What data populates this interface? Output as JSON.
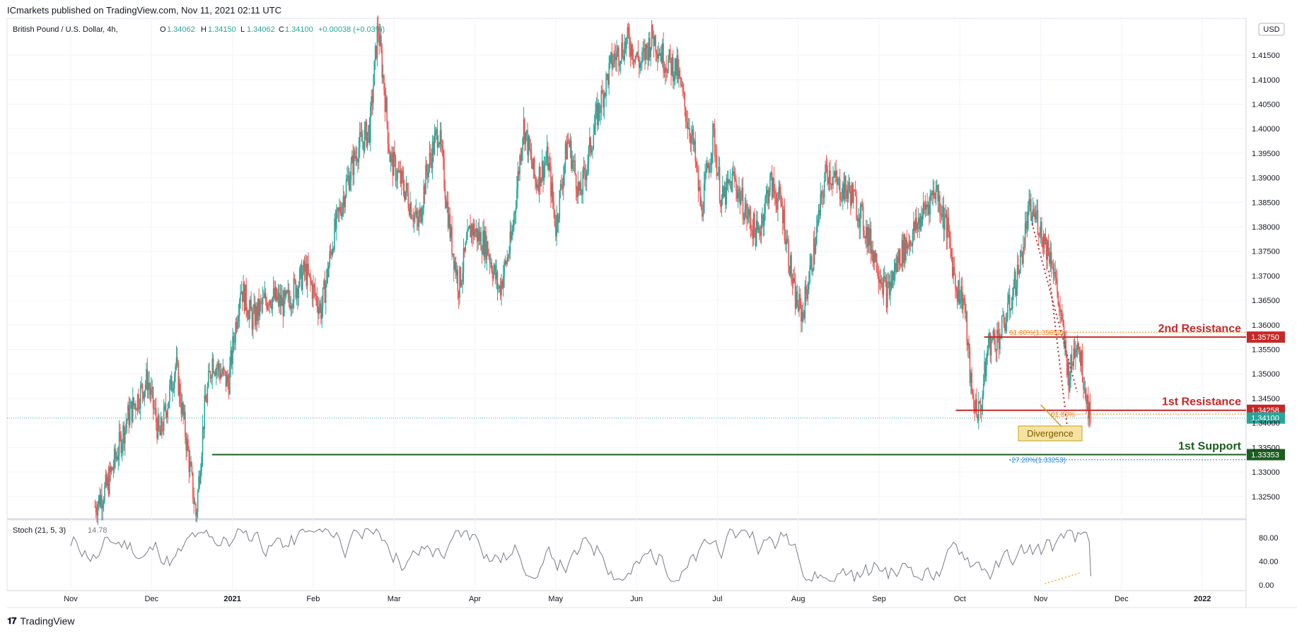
{
  "header": {
    "publisher": "ICmarkets published on TradingView.com, Nov 11, 2021 02:11 UTC"
  },
  "legend": {
    "symbol": "British Pound / U.S. Dollar, 4h,",
    "open_label": "O",
    "open": "1.34062",
    "high_label": "H",
    "high": "1.34150",
    "low_label": "L",
    "low": "1.34062",
    "close_label": "C",
    "close": "1.34100",
    "change": "+0.00038 (+0.03%)"
  },
  "currency_badge": "USD",
  "footer": {
    "logo_text": "𝟏𝟕",
    "brand": "TradingView"
  },
  "colors": {
    "up": "#26a69a",
    "down": "#ef5350",
    "resistance": "#c62828",
    "support": "#1b5e20",
    "fib": "#f57f17",
    "stoch": "#787b86"
  },
  "chart_data": [
    {
      "type": "candlestick",
      "title": "British Pound / U.S. Dollar, 4h",
      "y_scale": "price",
      "ylim": [
        1.3205,
        1.4225
      ],
      "y_ticks": [
        "1.32500",
        "1.33000",
        "1.33500",
        "1.34000",
        "1.34500",
        "1.35000",
        "1.35500",
        "1.36000",
        "1.36500",
        "1.37000",
        "1.37500",
        "1.38000",
        "1.38500",
        "1.39000",
        "1.39500",
        "1.40000",
        "1.40500",
        "1.41000",
        "1.41500"
      ],
      "x_ticks": [
        "Nov",
        "Dec",
        "2021",
        "Feb",
        "Mar",
        "Apr",
        "May",
        "Jun",
        "Jul",
        "Aug",
        "Sep",
        "Oct",
        "Nov",
        "Dec",
        "2022"
      ],
      "x_tick_positions": [
        0,
        1,
        2,
        3,
        4,
        5,
        6,
        7,
        8,
        9,
        10,
        11,
        12,
        13,
        14
      ],
      "last_price": 1.341,
      "price_path": [
        [
          0.3,
          1.323
        ],
        [
          0.45,
          1.327
        ],
        [
          0.7,
          1.341
        ],
        [
          0.95,
          1.349
        ],
        [
          1.1,
          1.337
        ],
        [
          1.3,
          1.352
        ],
        [
          1.45,
          1.334
        ],
        [
          1.55,
          1.321
        ],
        [
          1.65,
          1.342
        ],
        [
          1.75,
          1.353
        ],
        [
          1.95,
          1.348
        ],
        [
          2.1,
          1.368
        ],
        [
          2.25,
          1.361
        ],
        [
          2.45,
          1.366
        ],
        [
          2.65,
          1.364
        ],
        [
          2.9,
          1.371
        ],
        [
          3.1,
          1.363
        ],
        [
          3.25,
          1.378
        ],
        [
          3.4,
          1.388
        ],
        [
          3.55,
          1.396
        ],
        [
          3.7,
          1.4
        ],
        [
          3.8,
          1.421
        ],
        [
          3.88,
          1.408
        ],
        [
          3.95,
          1.394
        ],
        [
          4.15,
          1.387
        ],
        [
          4.3,
          1.38
        ],
        [
          4.4,
          1.391
        ],
        [
          4.55,
          1.4
        ],
        [
          4.7,
          1.378
        ],
        [
          4.8,
          1.368
        ],
        [
          4.95,
          1.38
        ],
        [
          5.15,
          1.376
        ],
        [
          5.3,
          1.367
        ],
        [
          5.45,
          1.377
        ],
        [
          5.6,
          1.401
        ],
        [
          5.75,
          1.389
        ],
        [
          5.9,
          1.394
        ],
        [
          6.0,
          1.38
        ],
        [
          6.15,
          1.398
        ],
        [
          6.3,
          1.386
        ],
        [
          6.5,
          1.402
        ],
        [
          6.7,
          1.414
        ],
        [
          6.9,
          1.418
        ],
        [
          7.05,
          1.413
        ],
        [
          7.2,
          1.419
        ],
        [
          7.35,
          1.414
        ],
        [
          7.5,
          1.412
        ],
        [
          7.6,
          1.404
        ],
        [
          7.7,
          1.397
        ],
        [
          7.8,
          1.383
        ],
        [
          7.95,
          1.399
        ],
        [
          8.05,
          1.385
        ],
        [
          8.2,
          1.39
        ],
        [
          8.35,
          1.383
        ],
        [
          8.5,
          1.378
        ],
        [
          8.65,
          1.389
        ],
        [
          8.8,
          1.384
        ],
        [
          8.95,
          1.366
        ],
        [
          9.05,
          1.362
        ],
        [
          9.2,
          1.376
        ],
        [
          9.35,
          1.392
        ],
        [
          9.5,
          1.388
        ],
        [
          9.65,
          1.387
        ],
        [
          9.8,
          1.381
        ],
        [
          9.95,
          1.374
        ],
        [
          10.1,
          1.366
        ],
        [
          10.25,
          1.374
        ],
        [
          10.4,
          1.378
        ],
        [
          10.55,
          1.383
        ],
        [
          10.7,
          1.388
        ],
        [
          10.85,
          1.379
        ],
        [
          10.95,
          1.368
        ],
        [
          11.05,
          1.365
        ],
        [
          11.15,
          1.345
        ],
        [
          11.25,
          1.342
        ],
        [
          11.35,
          1.356
        ],
        [
          11.5,
          1.358
        ],
        [
          11.6,
          1.363
        ],
        [
          11.75,
          1.373
        ],
        [
          11.85,
          1.383
        ],
        [
          11.95,
          1.382
        ],
        [
          12.05,
          1.377
        ],
        [
          12.15,
          1.373
        ],
        [
          12.25,
          1.361
        ],
        [
          12.35,
          1.349
        ],
        [
          12.45,
          1.358
        ],
        [
          12.55,
          1.347
        ],
        [
          12.62,
          1.341
        ]
      ]
    },
    {
      "type": "line",
      "title": "Stoch (21, 5, 3)",
      "value_label": "14.78",
      "ylim": [
        0,
        100
      ],
      "y_ticks": [
        "80.00",
        "40.00",
        "0.00"
      ],
      "y_tick_values": [
        80,
        40,
        0
      ],
      "last_value": 14.78
    }
  ],
  "levels": [
    {
      "name": "2nd Resistance",
      "price": 1.3575,
      "price_label": "1.35750",
      "color": "#c62828",
      "x_start": 11.3
    },
    {
      "name": "1st Resistance",
      "price": 1.34258,
      "price_label": "1.34258",
      "color": "#c62828",
      "x_start": 10.95
    },
    {
      "name": "1st Support",
      "price": 1.33353,
      "price_label": "1.33353",
      "color": "#1b5e20",
      "x_start": 1.75
    }
  ],
  "current_price_label": "1.34100",
  "fib_labels": [
    {
      "text": "61.80%(1.35852)",
      "price": 1.3585
    },
    {
      "text": "61.80%",
      "price": 1.3418
    },
    {
      "text": "-27.20%(1.33253)",
      "price": 1.3325
    }
  ],
  "divergence_label": "Divergence"
}
